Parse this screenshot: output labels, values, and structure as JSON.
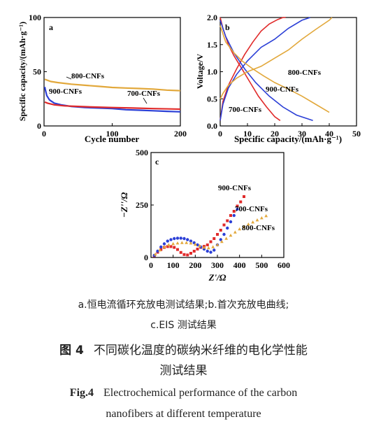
{
  "chart_data": [
    {
      "panel": "a",
      "type": "line",
      "xlabel": "Cycle number",
      "ylabel": "Specific capacity/(mAh·g⁻¹)",
      "xlim": [
        0,
        200
      ],
      "ylim": [
        0,
        100
      ],
      "xticks": [
        0,
        100,
        200
      ],
      "yticks": [
        0,
        50,
        100
      ],
      "series": [
        {
          "name": "800-CNFs",
          "color": "#e2a83b",
          "x": [
            1,
            10,
            20,
            40,
            60,
            80,
            100,
            120,
            140,
            160,
            180,
            200
          ],
          "y": [
            43,
            41,
            40,
            38.5,
            37.5,
            36.5,
            35.5,
            35,
            34.5,
            34,
            33,
            32.5
          ]
        },
        {
          "name": "900-CNFs",
          "color": "#2b3fd6",
          "x": [
            1,
            2,
            4,
            8,
            15,
            25,
            40,
            60,
            80,
            100,
            120,
            140,
            160,
            180,
            200
          ],
          "y": [
            36,
            33,
            28,
            24,
            21,
            19.5,
            18,
            17,
            16.5,
            16,
            15,
            14.5,
            14,
            13.5,
            13
          ]
        },
        {
          "name": "700-CNFs",
          "color": "#e02a2a",
          "x": [
            1,
            5,
            15,
            30,
            50,
            70,
            100,
            130,
            160,
            200
          ],
          "y": [
            22,
            21,
            19.5,
            18.5,
            18,
            17.5,
            17,
            16.5,
            16,
            15.5
          ]
        }
      ]
    },
    {
      "panel": "b",
      "type": "line",
      "xlabel": "Specific capacity/(mAh·g⁻¹)",
      "ylabel": "Voltage/V",
      "xlim": [
        0,
        50
      ],
      "ylim": [
        0,
        2.0
      ],
      "xticks": [
        0,
        10,
        20,
        30,
        40,
        50
      ],
      "yticks": [
        0,
        0.5,
        1.0,
        1.5,
        2.0
      ],
      "series": [
        {
          "name": "700-CNFs",
          "color": "#e02a2a",
          "discharge": {
            "x": [
              0,
              1,
              3,
              5,
              8,
              11,
              14,
              17,
              20,
              22
            ],
            "y": [
              2.0,
              1.8,
              1.5,
              1.3,
              1.05,
              0.8,
              0.55,
              0.35,
              0.17,
              0.1
            ]
          },
          "charge": {
            "x": [
              0,
              1,
              3,
              6,
              9,
              12,
              15,
              18,
              21,
              23,
              24
            ],
            "y": [
              0.1,
              0.45,
              0.75,
              1.05,
              1.32,
              1.55,
              1.75,
              1.88,
              1.96,
              2.0,
              2.0
            ]
          }
        },
        {
          "name": "900-CNFs",
          "color": "#2b3fd6",
          "discharge": {
            "x": [
              0,
              2,
              5,
              9,
              13,
              18,
              23,
              28,
              34
            ],
            "y": [
              1.95,
              1.65,
              1.35,
              1.05,
              0.8,
              0.55,
              0.35,
              0.2,
              0.1
            ]
          },
          "charge": {
            "x": [
              0,
              1,
              3,
              6,
              10,
              15,
              20,
              25,
              30,
              33
            ],
            "y": [
              0.1,
              0.4,
              0.7,
              0.95,
              1.2,
              1.45,
              1.6,
              1.8,
              1.95,
              2.0
            ]
          }
        },
        {
          "name": "800-CNFs",
          "color": "#e2a83b",
          "discharge": {
            "x": [
              0,
              2,
              5,
              8,
              12,
              16,
              20,
              25,
              30,
              35,
              40
            ],
            "y": [
              1.85,
              1.55,
              1.35,
              1.2,
              1.05,
              0.92,
              0.8,
              0.68,
              0.55,
              0.4,
              0.25
            ]
          },
          "charge": {
            "x": [
              0,
              1,
              3,
              6,
              10,
              15,
              20,
              25,
              30,
              35,
              40,
              41
            ],
            "y": [
              0.5,
              0.6,
              0.75,
              0.88,
              1.0,
              1.1,
              1.25,
              1.4,
              1.6,
              1.78,
              1.95,
              2.0
            ]
          }
        }
      ]
    },
    {
      "panel": "c",
      "type": "scatter",
      "xlabel": "Z'/Ω",
      "ylabel": "−Z''/Ω",
      "xlim": [
        0,
        600
      ],
      "ylim": [
        0,
        500
      ],
      "xticks": [
        0,
        100,
        200,
        300,
        400,
        500,
        600
      ],
      "yticks": [
        0,
        250,
        500
      ],
      "series": [
        {
          "name": "900-CNFs",
          "color": "#e02a2a",
          "marker": "square",
          "x": [
            15,
            30,
            45,
            60,
            75,
            90,
            105,
            120,
            135,
            150,
            165,
            180,
            195,
            210,
            225,
            240,
            255,
            270,
            285,
            300,
            315,
            330,
            345,
            360,
            375,
            390,
            405,
            420
          ],
          "y": [
            8,
            25,
            38,
            48,
            52,
            52,
            48,
            38,
            24,
            14,
            12,
            20,
            30,
            40,
            48,
            53,
            60,
            75,
            90,
            110,
            130,
            155,
            175,
            200,
            220,
            245,
            265,
            290
          ]
        },
        {
          "name": "700-CNFs",
          "color": "#2b3fd6",
          "marker": "circle",
          "x": [
            15,
            30,
            45,
            60,
            75,
            90,
            105,
            120,
            135,
            150,
            165,
            180,
            195,
            210,
            225,
            240,
            255,
            270,
            285,
            300,
            315,
            330,
            345,
            360,
            375,
            390
          ],
          "y": [
            10,
            30,
            50,
            65,
            78,
            85,
            90,
            92,
            92,
            90,
            85,
            78,
            70,
            60,
            50,
            40,
            30,
            25,
            35,
            60,
            85,
            110,
            140,
            170,
            200,
            230
          ]
        },
        {
          "name": "800-CNFs",
          "color": "#e2a83b",
          "marker": "triangle",
          "x": [
            20,
            40,
            60,
            80,
            100,
            120,
            140,
            160,
            180,
            200,
            220,
            240,
            260,
            280,
            300,
            320,
            340,
            360,
            380,
            400,
            420,
            440,
            460,
            480,
            500,
            520
          ],
          "y": [
            15,
            35,
            50,
            60,
            65,
            68,
            70,
            70,
            68,
            62,
            55,
            48,
            45,
            50,
            60,
            75,
            90,
            105,
            120,
            135,
            145,
            158,
            168,
            178,
            188,
            198
          ]
        }
      ]
    }
  ],
  "captions": {
    "sub1": "a.恒电流循环充放电测试结果;b.首次充放电曲线;",
    "sub2": "c.EIS 测试结果",
    "cn_label": "图 4",
    "cn_title1": "不同碳化温度的碳纳米纤维的电化学性能",
    "cn_title2": "测试结果",
    "en_label": "Fig.4",
    "en_title1": "Electrochemical performance of the carbon",
    "en_title2": "nanofibers at different temperature"
  }
}
